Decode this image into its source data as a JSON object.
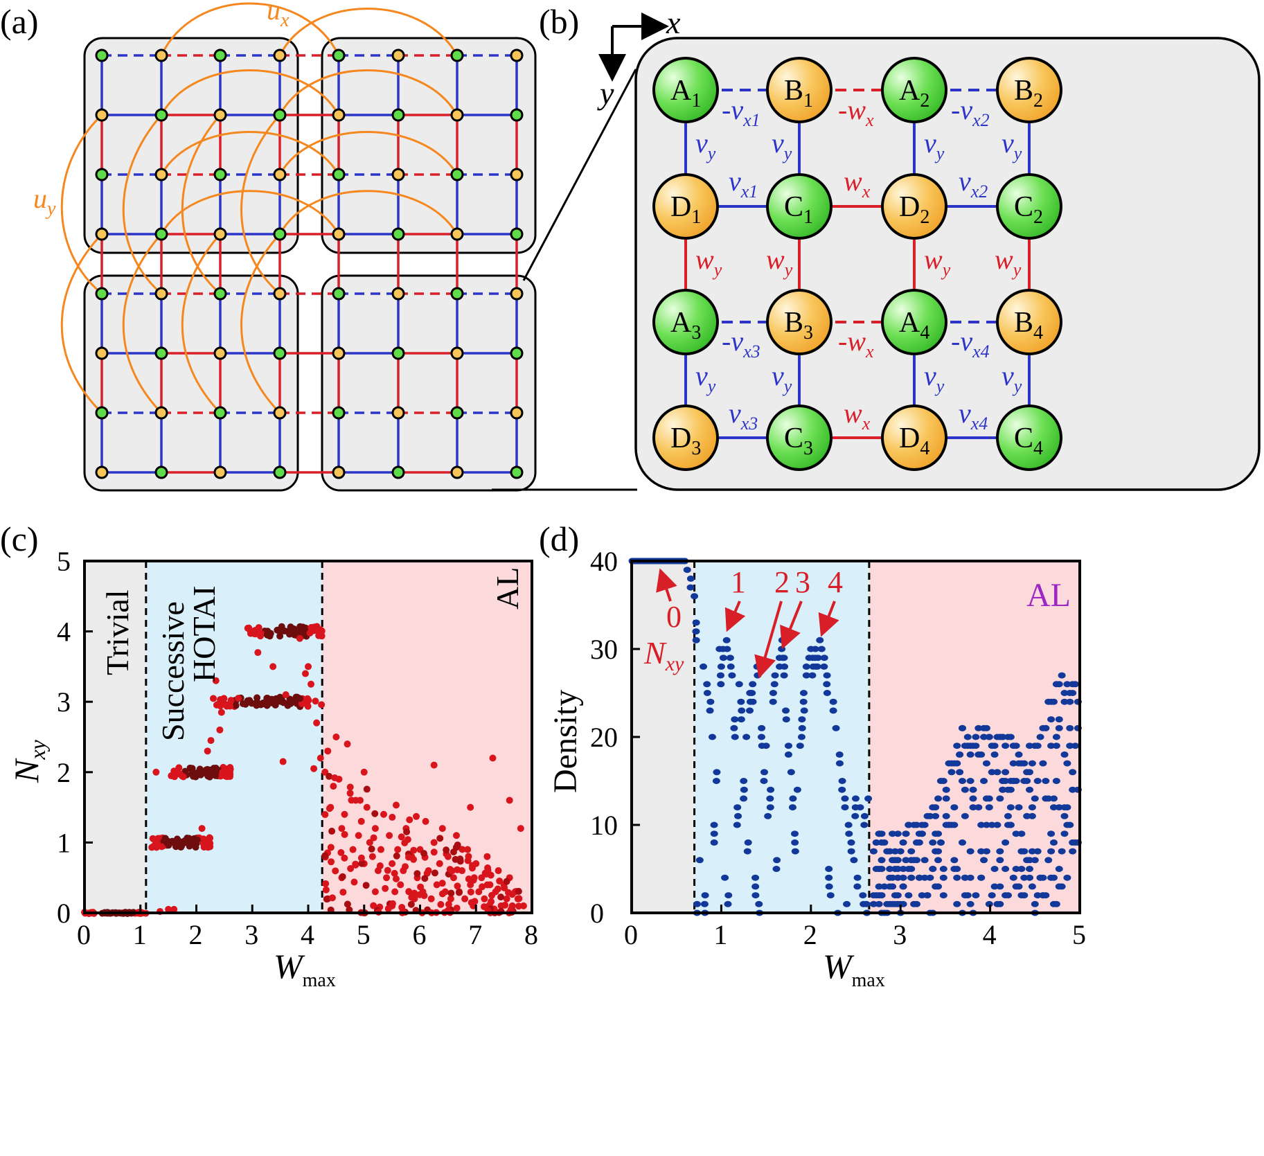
{
  "panels": {
    "a": {
      "label": "(a)",
      "ux": "u",
      "ux_sub": "x",
      "uy": "u",
      "uy_sub": "y"
    },
    "b": {
      "label": "(b)",
      "axis_x": "x",
      "axis_y": "y",
      "nodes": [
        {
          "l": "A",
          "s": "1",
          "kind": "green"
        },
        {
          "l": "B",
          "s": "1",
          "kind": "orange"
        },
        {
          "l": "A",
          "s": "2",
          "kind": "green"
        },
        {
          "l": "B",
          "s": "2",
          "kind": "orange"
        },
        {
          "l": "D",
          "s": "1",
          "kind": "orange"
        },
        {
          "l": "C",
          "s": "1",
          "kind": "green"
        },
        {
          "l": "D",
          "s": "2",
          "kind": "orange"
        },
        {
          "l": "C",
          "s": "2",
          "kind": "green"
        },
        {
          "l": "A",
          "s": "3",
          "kind": "green"
        },
        {
          "l": "B",
          "s": "3",
          "kind": "orange"
        },
        {
          "l": "A",
          "s": "4",
          "kind": "green"
        },
        {
          "l": "B",
          "s": "4",
          "kind": "orange"
        },
        {
          "l": "D",
          "s": "3",
          "kind": "orange"
        },
        {
          "l": "C",
          "s": "3",
          "kind": "green"
        },
        {
          "l": "D",
          "s": "4",
          "kind": "orange"
        },
        {
          "l": "C",
          "s": "4",
          "kind": "green"
        }
      ],
      "couplings": {
        "neg_vx1": [
          "-v",
          "x1"
        ],
        "neg_wx": [
          "-w",
          "x"
        ],
        "neg_vx2": [
          "-v",
          "x2"
        ],
        "vx1": [
          "v",
          "x1"
        ],
        "wx": [
          "w",
          "x"
        ],
        "vx2": [
          "v",
          "x2"
        ],
        "neg_vx3": [
          "-v",
          "x3"
        ],
        "neg_vx4": [
          "-v",
          "x4"
        ],
        "vx3": [
          "v",
          "x3"
        ],
        "vx4": [
          "v",
          "x4"
        ],
        "vy": [
          "v",
          "y"
        ],
        "wy": [
          "w",
          "y"
        ]
      }
    },
    "c": {
      "label": "(c)",
      "regions": [
        "Trivial",
        "Successive",
        "HOTAI",
        "AL"
      ],
      "ylabel": "N",
      "ylabel_sub": "xy",
      "xlabel": "W",
      "xlabel_sub": "max"
    },
    "d": {
      "label": "(d)",
      "region_label": "AL",
      "ylabel": "Density",
      "xlabel": "W",
      "xlabel_sub": "max",
      "annotations": [
        "0",
        "1",
        "2",
        "3",
        "4"
      ],
      "annot_var": "N",
      "annot_var_sub": "xy"
    }
  },
  "colors": {
    "blue_bond": "#2d35c8",
    "red_bond": "#d9202a",
    "orange_link": "#f5871f",
    "green_site": "#5fdc4a",
    "orange_site": "#f7c55a",
    "cell_bg": "#ececec",
    "trivial_bg": "#ebebeb",
    "hotai_bg": "#d9f0fb",
    "al_bg": "#fcdadb",
    "red_point": "#d8141c",
    "dark_point": "#6e0d0d",
    "blue_point": "#12399a",
    "annot_red": "#d81e26",
    "al_purple": "#9c27c4"
  },
  "chart_data": [
    {
      "type": "scatter",
      "title": "(c)",
      "xlabel": "W_max",
      "ylabel": "N_xy",
      "xlim": [
        0,
        8
      ],
      "ylim": [
        0,
        5
      ],
      "xticks": [
        "0",
        "1",
        "2",
        "3",
        "4",
        "5",
        "6",
        "7",
        "8"
      ],
      "yticks": [
        "0",
        "1",
        "2",
        "3",
        "4",
        "5"
      ],
      "boundaries": [
        1.1,
        4.25
      ],
      "regions": [
        "Trivial",
        "Successive HOTAI",
        "AL"
      ],
      "plateaus": [
        {
          "x_range": [
            0,
            1.1
          ],
          "y": 0
        },
        {
          "x_range": [
            1.2,
            2.25
          ],
          "y": 1
        },
        {
          "x_range": [
            1.55,
            2.65
          ],
          "y": 2
        },
        {
          "x_range": [
            2.3,
            4.25
          ],
          "y": 3
        },
        {
          "x_range": [
            2.9,
            4.25
          ],
          "y": 4
        }
      ],
      "transition_points": [
        [
          1.28,
          2
        ],
        [
          2.1,
          1.2
        ],
        [
          2.2,
          2.3
        ],
        [
          2.26,
          2.45
        ],
        [
          2.42,
          2.6
        ],
        [
          2.45,
          2.85
        ],
        [
          2.35,
          3.3
        ],
        [
          2.62,
          3.02
        ],
        [
          2.75,
          3.05
        ],
        [
          3.1,
          3.7
        ],
        [
          3.37,
          3.5
        ],
        [
          3.85,
          3.9
        ],
        [
          4.0,
          3.5
        ],
        [
          3.6,
          3.1
        ],
        [
          3.55,
          2.15
        ],
        [
          3.95,
          3.4
        ],
        [
          4.15,
          2.7
        ],
        [
          4.05,
          3.25
        ],
        [
          4.22,
          2.2
        ],
        [
          4.1,
          2.05
        ],
        [
          1.6,
          0.05
        ],
        [
          1.35,
          0.02
        ],
        [
          1.5,
          0.05
        ]
      ],
      "al_points": [
        [
          4.3,
          2.0
        ],
        [
          4.35,
          2.3
        ],
        [
          4.4,
          1.5
        ],
        [
          4.5,
          2.5
        ],
        [
          4.45,
          1.8
        ],
        [
          4.55,
          1.9
        ],
        [
          4.6,
          1.2
        ],
        [
          4.65,
          1.4
        ],
        [
          4.7,
          2.4
        ],
        [
          4.75,
          1.7
        ],
        [
          4.8,
          0.9
        ],
        [
          4.85,
          1.6
        ],
        [
          4.9,
          1.1
        ],
        [
          4.95,
          1.3
        ],
        [
          5.0,
          0.7
        ],
        [
          5.05,
          1.5
        ],
        [
          5.1,
          1.0
        ],
        [
          5.15,
          0.8
        ],
        [
          5.2,
          1.2
        ],
        [
          5.25,
          0.6
        ],
        [
          5.3,
          0.9
        ],
        [
          5.35,
          1.4
        ],
        [
          5.4,
          0.5
        ],
        [
          5.45,
          1.1
        ],
        [
          5.5,
          0.7
        ],
        [
          5.55,
          0.3
        ],
        [
          5.6,
          0.9
        ],
        [
          5.65,
          0.4
        ],
        [
          5.7,
          0.6
        ],
        [
          5.75,
          1.2
        ],
        [
          5.8,
          0.3
        ],
        [
          5.85,
          0.8
        ],
        [
          5.9,
          0.2
        ],
        [
          5.95,
          0.5
        ],
        [
          6.0,
          0.9
        ],
        [
          6.05,
          0.3
        ],
        [
          6.1,
          1.3
        ],
        [
          6.15,
          0.6
        ],
        [
          6.2,
          0.2
        ],
        [
          6.25,
          1.0
        ],
        [
          6.3,
          0.4
        ],
        [
          6.35,
          0.7
        ],
        [
          6.4,
          1.2
        ],
        [
          6.45,
          0.3
        ],
        [
          6.5,
          0.8
        ],
        [
          6.55,
          0.2
        ],
        [
          6.6,
          0.5
        ],
        [
          6.65,
          1.1
        ],
        [
          6.7,
          0.3
        ],
        [
          6.75,
          0.6
        ],
        [
          6.8,
          0.2
        ],
        [
          6.85,
          0.9
        ],
        [
          6.9,
          0.4
        ],
        [
          6.95,
          0.1
        ],
        [
          7.0,
          0.7
        ],
        [
          7.05,
          0.3
        ],
        [
          7.1,
          0.5
        ],
        [
          7.15,
          0.2
        ],
        [
          7.2,
          0.8
        ],
        [
          7.25,
          0.4
        ],
        [
          7.3,
          2.2
        ],
        [
          7.35,
          0.3
        ],
        [
          7.4,
          0.6
        ],
        [
          7.45,
          0.1
        ],
        [
          7.5,
          0.4
        ],
        [
          7.55,
          0.2
        ],
        [
          7.6,
          0.5
        ],
        [
          7.65,
          0.1
        ],
        [
          7.7,
          0.3
        ],
        [
          7.75,
          0.2
        ],
        [
          7.8,
          1.2
        ],
        [
          7.85,
          0.1
        ],
        [
          4.35,
          0.2
        ],
        [
          4.6,
          0.5
        ],
        [
          5.0,
          2.0
        ],
        [
          5.2,
          0.3
        ],
        [
          5.5,
          0.1
        ],
        [
          6.25,
          2.1
        ],
        [
          6.9,
          1.5
        ],
        [
          7.6,
          1.6
        ]
      ]
    },
    {
      "type": "scatter",
      "title": "(d)",
      "xlabel": "W_max",
      "ylabel": "Density",
      "xlim": [
        0,
        5
      ],
      "ylim": [
        0,
        40
      ],
      "xticks": [
        "0",
        "1",
        "2",
        "3",
        "4",
        "5"
      ],
      "yticks": [
        "0",
        "10",
        "20",
        "30",
        "40"
      ],
      "boundaries": [
        0.7,
        2.65
      ],
      "region_label": "AL",
      "annotations": [
        {
          "text": "0",
          "x": 0.28,
          "y": 40
        },
        {
          "text": "1",
          "x": 1.05,
          "y": 32
        },
        {
          "text": "2",
          "x": 1.4,
          "y": 28
        },
        {
          "text": "3",
          "x": 1.68,
          "y": 31
        },
        {
          "text": "4",
          "x": 2.1,
          "y": 31
        }
      ],
      "trivial_line": {
        "x_range": [
          0.0,
          0.6
        ],
        "y": 40
      },
      "hotai_series": [
        [
          0.62,
          39
        ],
        [
          0.66,
          38
        ],
        [
          0.7,
          36
        ],
        [
          0.72,
          33
        ],
        [
          0.73,
          1
        ],
        [
          0.76,
          6
        ],
        [
          0.8,
          28
        ],
        [
          0.82,
          2
        ],
        [
          0.84,
          26
        ],
        [
          0.88,
          24
        ],
        [
          0.9,
          20
        ],
        [
          0.92,
          10
        ],
        [
          0.95,
          16
        ],
        [
          0.98,
          30
        ],
        [
          1.0,
          28
        ],
        [
          1.02,
          30
        ],
        [
          1.04,
          4
        ],
        [
          1.06,
          31
        ],
        [
          1.08,
          2
        ],
        [
          1.1,
          29
        ],
        [
          1.12,
          27
        ],
        [
          1.15,
          22
        ],
        [
          1.18,
          12
        ],
        [
          1.2,
          26
        ],
        [
          1.22,
          24
        ],
        [
          1.25,
          15
        ],
        [
          1.28,
          20
        ],
        [
          1.3,
          8
        ],
        [
          1.32,
          25
        ],
        [
          1.35,
          26
        ],
        [
          1.38,
          4
        ],
        [
          1.4,
          28
        ],
        [
          1.42,
          1
        ],
        [
          1.45,
          21
        ],
        [
          1.48,
          16
        ],
        [
          1.5,
          19
        ],
        [
          1.52,
          11
        ],
        [
          1.55,
          14
        ],
        [
          1.58,
          25
        ],
        [
          1.6,
          27
        ],
        [
          1.62,
          6
        ],
        [
          1.65,
          29
        ],
        [
          1.68,
          31
        ],
        [
          1.7,
          29
        ],
        [
          1.72,
          23
        ],
        [
          1.75,
          19
        ],
        [
          1.78,
          16
        ],
        [
          1.8,
          13
        ],
        [
          1.82,
          9
        ],
        [
          1.85,
          14
        ],
        [
          1.88,
          19
        ],
        [
          1.9,
          22
        ],
        [
          1.92,
          25
        ],
        [
          1.95,
          28
        ],
        [
          1.98,
          29
        ],
        [
          2.0,
          30
        ],
        [
          2.02,
          29
        ],
        [
          2.05,
          30
        ],
        [
          2.08,
          29
        ],
        [
          2.1,
          31
        ],
        [
          2.12,
          30
        ],
        [
          2.15,
          29
        ],
        [
          2.18,
          27
        ],
        [
          2.2,
          5
        ],
        [
          2.22,
          2
        ],
        [
          2.25,
          24
        ],
        [
          2.28,
          21
        ],
        [
          2.3,
          0
        ],
        [
          2.32,
          18
        ],
        [
          2.35,
          15
        ],
        [
          2.38,
          13
        ],
        [
          2.4,
          1
        ],
        [
          2.42,
          10
        ],
        [
          2.45,
          8
        ],
        [
          2.48,
          6
        ],
        [
          2.5,
          13
        ],
        [
          2.52,
          4
        ],
        [
          2.55,
          12
        ],
        [
          2.58,
          2
        ],
        [
          2.6,
          11
        ],
        [
          2.62,
          1
        ],
        [
          2.64,
          13
        ]
      ],
      "al_series_note": "envelope peaks near W=3.7 (20), 4.2 (20), 4.75 (26)",
      "al_peaks": [
        [
          3.0,
          8
        ],
        [
          3.3,
          10
        ],
        [
          3.7,
          20
        ],
        [
          3.8,
          19
        ],
        [
          4.2,
          20
        ],
        [
          4.4,
          17
        ],
        [
          4.75,
          26
        ],
        [
          4.9,
          25
        ]
      ]
    }
  ]
}
